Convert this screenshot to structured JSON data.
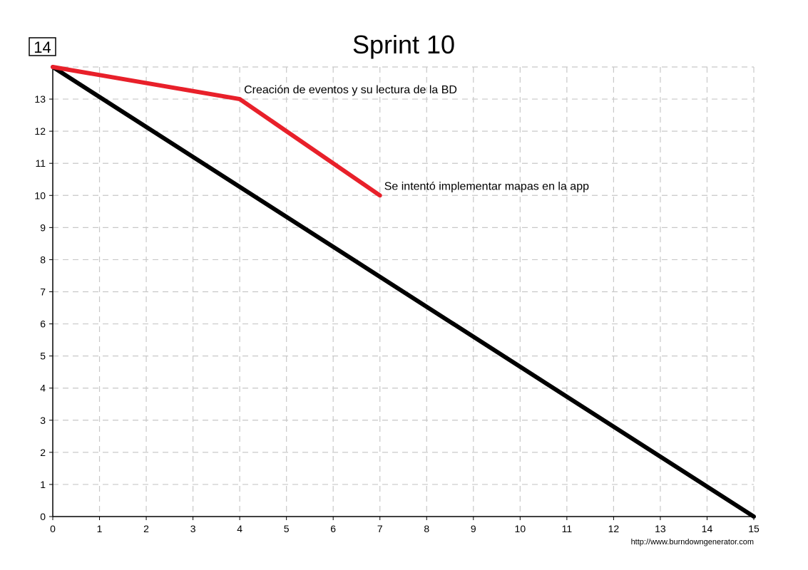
{
  "chart_data": {
    "type": "line",
    "title": "Sprint 10",
    "xlabel": "",
    "ylabel": "",
    "x_ticks": [
      "0",
      "1",
      "2",
      "3",
      "4",
      "5",
      "6",
      "7",
      "8",
      "9",
      "10",
      "11",
      "12",
      "13",
      "14",
      "15"
    ],
    "y_ticks": [
      "0",
      "1",
      "2",
      "3",
      "4",
      "5",
      "6",
      "7",
      "8",
      "9",
      "10",
      "11",
      "12",
      "13"
    ],
    "y_top_label": "14",
    "xlim": [
      0,
      15
    ],
    "ylim": [
      0,
      14
    ],
    "grid": true,
    "series": [
      {
        "color": "#000000",
        "points": [
          [
            0,
            14
          ],
          [
            15,
            0
          ]
        ]
      },
      {
        "color": "#e8202a",
        "points": [
          [
            0,
            14
          ],
          [
            4,
            13
          ],
          [
            7,
            10
          ]
        ]
      }
    ],
    "annotations": [
      {
        "x": 4,
        "y": 13,
        "text": "Creación de eventos y su lectura de la BD"
      },
      {
        "x": 7,
        "y": 10,
        "text": "Se intentó implementar mapas en la app"
      }
    ],
    "source_text": "http://www.burndowngenerator.com"
  }
}
